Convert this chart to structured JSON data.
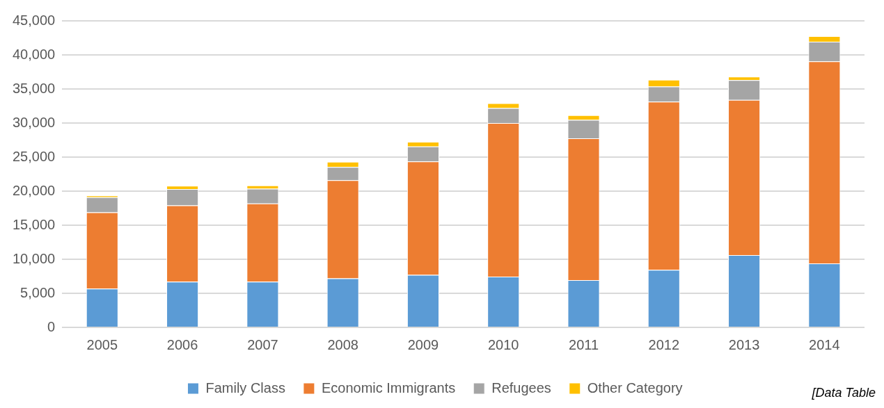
{
  "chart_data": {
    "type": "bar",
    "stacked": true,
    "categories": [
      "2005",
      "2006",
      "2007",
      "2008",
      "2009",
      "2010",
      "2011",
      "2012",
      "2013",
      "2014"
    ],
    "series": [
      {
        "name": "Family Class",
        "color": "#5b9bd5",
        "values": [
          5700,
          6700,
          6700,
          7200,
          7700,
          7450,
          6950,
          8450,
          10600,
          9400
        ]
      },
      {
        "name": "Economic Immigrants",
        "color": "#ed7d31",
        "values": [
          11200,
          11200,
          11500,
          14400,
          16650,
          22550,
          20800,
          24700,
          22800,
          29650
        ]
      },
      {
        "name": "Refugees",
        "color": "#a5a5a5",
        "values": [
          2200,
          2400,
          2150,
          1950,
          2200,
          2200,
          2700,
          2200,
          2900,
          2900
        ]
      },
      {
        "name": "Other Category",
        "color": "#ffc000",
        "values": [
          250,
          500,
          500,
          750,
          700,
          700,
          700,
          1000,
          500,
          800
        ]
      }
    ],
    "ylim": [
      0,
      45000
    ],
    "yticks": [
      {
        "value": 0,
        "label": "0"
      },
      {
        "value": 5000,
        "label": "5,000"
      },
      {
        "value": 10000,
        "label": "10,000"
      },
      {
        "value": 15000,
        "label": "15,000"
      },
      {
        "value": 20000,
        "label": "20,000"
      },
      {
        "value": 25000,
        "label": "25,000"
      },
      {
        "value": 30000,
        "label": "30,000"
      },
      {
        "value": 35000,
        "label": "35,000"
      },
      {
        "value": 40000,
        "label": "40,000"
      },
      {
        "value": 45000,
        "label": "45,000"
      }
    ],
    "grid": "y",
    "legend": "bottom",
    "annotations": [
      "[Data Table"
    ]
  }
}
